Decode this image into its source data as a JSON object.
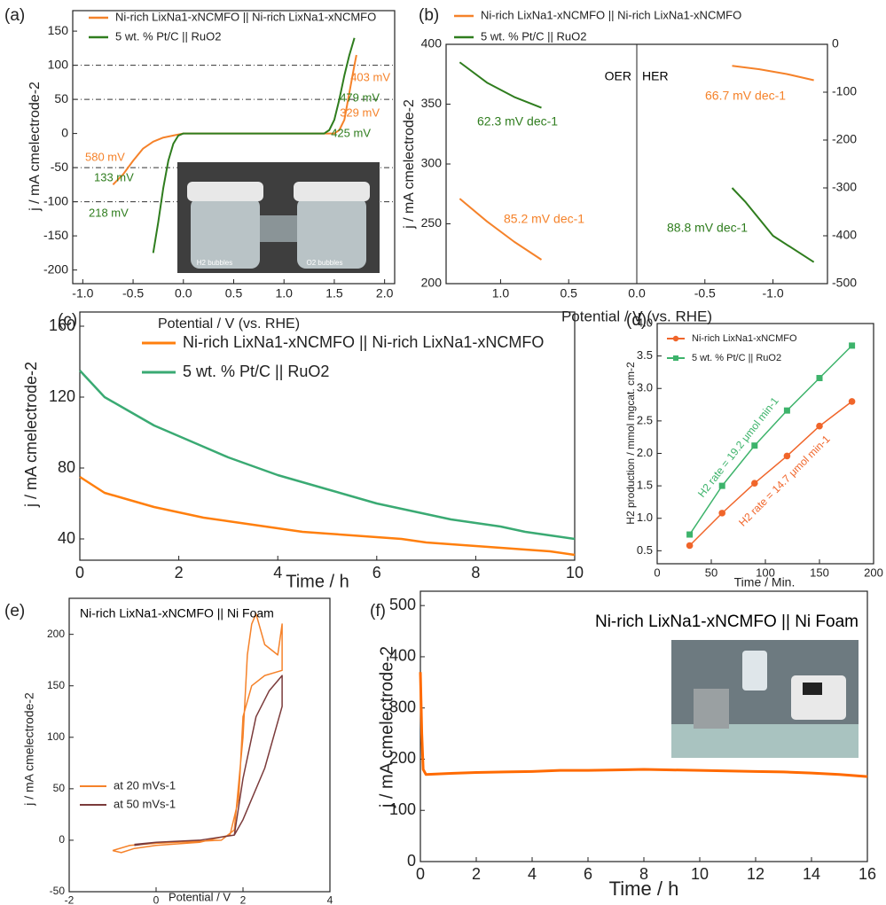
{
  "chart_data": [
    {
      "type": "line",
      "label": "(a)",
      "xlabel": "Potential / V (vs. RHE)",
      "ylabel": "j / mA cmelectrode-2",
      "xlim": [
        -1.1,
        2.1
      ],
      "ylim": [
        -220,
        180
      ],
      "xticks": [
        {
          "value": -1.0,
          "label": "-1.0"
        },
        -0.5,
        {
          "value": 0.0,
          "label": "0.0"
        },
        0.5,
        {
          "value": 1.0,
          "label": "1.0"
        },
        1.5,
        {
          "value": 2.0,
          "label": "2.0"
        }
      ],
      "yticks": [
        -200,
        -150,
        -100,
        -50,
        0,
        50,
        100,
        150
      ],
      "hlines": [
        100,
        50,
        -50,
        -100
      ],
      "series": [
        {
          "name": "Ni-rich LixNa1-xNCMFO || Ni-rich LixNa1-xNCMFO",
          "color": "#f5822a",
          "x": [
            -0.7,
            -0.6,
            -0.5,
            -0.4,
            -0.3,
            -0.2,
            -0.1,
            0,
            0.5,
            1.0,
            1.5,
            1.55,
            1.6,
            1.65,
            1.7,
            1.72
          ],
          "values": [
            -75,
            -60,
            -40,
            -22,
            -12,
            -6,
            -3,
            0,
            0,
            0,
            0,
            5,
            20,
            60,
            100,
            115
          ]
        },
        {
          "name": "5 wt. % Pt/C || RuO2",
          "color": "#2f7d1e",
          "x": [
            -0.3,
            -0.25,
            -0.2,
            -0.15,
            -0.1,
            -0.05,
            0,
            0.5,
            1.0,
            1.4,
            1.45,
            1.5,
            1.55,
            1.6,
            1.65,
            1.7
          ],
          "values": [
            -175,
            -130,
            -80,
            -40,
            -15,
            -3,
            0,
            0,
            0,
            0,
            5,
            20,
            50,
            85,
            115,
            140
          ]
        }
      ],
      "annotations": [
        {
          "text": "403 mV",
          "color": "#f5822a"
        },
        {
          "text": "479 mV",
          "color": "#2f7d1e"
        },
        {
          "text": "329 mV",
          "color": "#f5822a"
        },
        {
          "text": "425 mV",
          "color": "#2f7d1e"
        },
        {
          "text": "580 mV",
          "color": "#f5822a"
        },
        {
          "text": "133 mV",
          "color": "#2f7d1e"
        },
        {
          "text": "218 mV",
          "color": "#2f7d1e"
        },
        {
          "text": "H2 bubbles",
          "color": "#ffffff"
        },
        {
          "text": "O2 bubbles",
          "color": "#ffffff"
        }
      ]
    },
    {
      "type": "line",
      "label": "(b)",
      "xlabel": "Potential / V (vs. RHE)",
      "ylabel": "j / mA cmelectrode-2",
      "xlim": [
        1.4,
        -1.4
      ],
      "ylim": [
        200,
        400
      ],
      "y2lim": [
        -500,
        0
      ],
      "xticks": [
        {
          "value": 1.0,
          "label": "1.0"
        },
        0.5,
        {
          "value": 0.0,
          "label": "0.0"
        },
        -0.5,
        {
          "value": -1.0,
          "label": "-1.0"
        }
      ],
      "yticks": [
        200,
        250,
        300,
        350,
        400
      ],
      "y2ticks": [
        -500,
        -400,
        -300,
        -200,
        -100,
        0
      ],
      "vlines": [
        0
      ],
      "series": [
        {
          "name": "Ni-rich LixNa1-xNCMFO || Ni-rich LixNa1-xNCMFO",
          "color": "#f5822a",
          "segments": [
            {
              "axis": "y",
              "x": [
                1.3,
                1.1,
                0.9,
                0.7
              ],
              "values": [
                271,
                252,
                235,
                220
              ]
            },
            {
              "axis": "y2",
              "x": [
                -0.7,
                -0.9,
                -1.1,
                -1.3
              ],
              "values": [
                -45,
                -52,
                -62,
                -75
              ]
            }
          ]
        },
        {
          "name": "5 wt. % Pt/C || RuO2",
          "color": "#2f7d1e",
          "segments": [
            {
              "axis": "y",
              "x": [
                1.3,
                1.1,
                0.9,
                0.7
              ],
              "values": [
                385,
                368,
                356,
                347
              ]
            },
            {
              "axis": "y2",
              "x": [
                -0.7,
                -0.8,
                -1.0,
                -1.3
              ],
              "values": [
                -300,
                -330,
                -400,
                -455
              ]
            }
          ]
        }
      ],
      "annotations": [
        {
          "text": "OER",
          "color": "#000000"
        },
        {
          "text": "HER",
          "color": "#000000"
        },
        {
          "text": "62.3 mV dec-1",
          "color": "#2f7d1e"
        },
        {
          "text": "85.2 mV dec-1",
          "color": "#f5822a"
        },
        {
          "text": "66.7 mV dec-1",
          "color": "#f5822a"
        },
        {
          "text": "88.8 mV dec-1",
          "color": "#2f7d1e"
        }
      ]
    },
    {
      "type": "line",
      "label": "(c)",
      "xlabel": "Time / h",
      "ylabel": "j / mA cmelectrode-2",
      "xlim": [
        0,
        10
      ],
      "ylim": [
        28,
        168
      ],
      "xticks": [
        0,
        2,
        4,
        6,
        8,
        10
      ],
      "yticks": [
        40,
        80,
        120,
        160
      ],
      "series": [
        {
          "name": "Ni-rich LixNa1-xNCMFO || Ni-rich LixNa1-xNCMFO",
          "color": "#ff7f0e",
          "x": [
            0,
            0.5,
            1,
            1.5,
            2,
            2.5,
            3,
            3.5,
            4,
            4.5,
            5,
            5.5,
            6,
            6.5,
            7,
            7.5,
            8,
            8.5,
            9,
            9.5,
            10
          ],
          "values": [
            75,
            66,
            62,
            58,
            55,
            52,
            50,
            48,
            46,
            44,
            43,
            42,
            41,
            40,
            38,
            37,
            36,
            35,
            34,
            33,
            31
          ]
        },
        {
          "name": "5 wt. % Pt/C || RuO2",
          "color": "#3aaa73",
          "x": [
            0,
            0.5,
            1,
            1.5,
            2,
            2.5,
            3,
            3.5,
            4,
            4.5,
            5,
            5.5,
            6,
            6.5,
            7,
            7.5,
            8,
            8.5,
            9,
            9.5,
            10
          ],
          "values": [
            135,
            120,
            112,
            104,
            98,
            92,
            86,
            81,
            76,
            72,
            68,
            64,
            60,
            57,
            54,
            51,
            49,
            47,
            44,
            42,
            40
          ]
        }
      ]
    },
    {
      "type": "line",
      "label": "(d)",
      "xlabel": "Time / Min.",
      "ylabel": "H2 production / mmol mgcat. cm-2",
      "xlim": [
        0,
        200
      ],
      "ylim": [
        0.3,
        4.0
      ],
      "xticks": [
        0,
        50,
        100,
        150,
        200
      ],
      "yticks": [
        0.5,
        {
          "value": 1.0,
          "label": "1.0"
        },
        1.5,
        {
          "value": 2.0,
          "label": "2.0"
        },
        2.5,
        {
          "value": 3.0,
          "label": "3.0"
        },
        3.5,
        {
          "value": 4.0,
          "label": "4.0"
        }
      ],
      "markers": true,
      "series": [
        {
          "name": "Ni-rich LixNa1-xNCMFO",
          "color": "#f0652a",
          "marker": "circle",
          "x": [
            30,
            60,
            90,
            120,
            150,
            180
          ],
          "values": [
            0.58,
            1.08,
            1.54,
            1.96,
            2.42,
            2.8
          ]
        },
        {
          "name": "5 wt. % Pt/C || RuO2",
          "color": "#3db36b",
          "marker": "square",
          "x": [
            30,
            60,
            90,
            120,
            150,
            180
          ],
          "values": [
            0.75,
            1.5,
            2.12,
            2.66,
            3.16,
            3.66
          ]
        }
      ],
      "annotations": [
        {
          "text": "H2 rate = 19.2 μmol min-1",
          "color": "#3db36b"
        },
        {
          "text": "H2 rate = 14.7 μmol min-1",
          "color": "#f0652a"
        }
      ]
    },
    {
      "type": "line",
      "label": "(e)",
      "xlabel": "Potential / V",
      "ylabel": "j / mA cmelectrode-2",
      "xlim": [
        -2,
        4
      ],
      "ylim": [
        -50,
        235
      ],
      "xticks": [
        -2,
        0,
        2,
        4
      ],
      "yticks": [
        -50,
        0,
        50,
        100,
        150,
        200
      ],
      "series": [
        {
          "name": "at 20 mVs-1",
          "color": "#f5822a",
          "x": [
            -1.0,
            -0.6,
            0,
            1.5,
            1.8,
            2.0,
            2.1,
            2.2,
            2.3,
            2.5,
            2.8,
            2.9,
            2.9,
            2.5,
            2.2,
            2.0,
            1.9,
            1.7,
            1.0,
            0,
            -0.5,
            -0.8,
            -1.0
          ],
          "values": [
            -10,
            -5,
            -3,
            0,
            10,
            100,
            180,
            210,
            220,
            190,
            180,
            210,
            165,
            160,
            150,
            120,
            40,
            5,
            -2,
            -5,
            -8,
            -12,
            -10
          ]
        },
        {
          "name": "at 50 mVs-1",
          "color": "#7b3b3b",
          "x": [
            -0.5,
            0,
            1.0,
            1.8,
            2.0,
            2.3,
            2.6,
            2.9,
            2.9,
            2.5,
            2.2,
            2.0,
            1.8,
            1.0,
            0,
            -0.5
          ],
          "values": [
            -4,
            -2,
            0,
            5,
            60,
            120,
            145,
            160,
            130,
            70,
            40,
            20,
            5,
            0,
            -2,
            -5
          ]
        }
      ],
      "annotations": [
        {
          "text": "Ni-rich LixNa1-xNCMFO || Ni Foam",
          "color": "#000000"
        }
      ]
    },
    {
      "type": "line",
      "label": "(f)",
      "xlabel": "Time / h",
      "ylabel": "j / mA cmelectrode-2",
      "xlim": [
        0,
        16
      ],
      "ylim": [
        0,
        528
      ],
      "xticks": [
        0,
        2,
        4,
        6,
        8,
        10,
        12,
        14,
        16
      ],
      "yticks": [
        0,
        100,
        200,
        300,
        400,
        500
      ],
      "series": [
        {
          "name": "Ni-rich LixNa1-xNCMFO || Ni Foam",
          "color": "#ff6a00",
          "x": [
            0,
            0.05,
            0.1,
            0.2,
            1,
            2,
            3,
            4,
            5,
            6,
            7,
            8,
            9,
            10,
            11,
            12,
            13,
            14,
            15,
            16
          ],
          "values": [
            370,
            250,
            180,
            170,
            172,
            174,
            175,
            176,
            178,
            178,
            179,
            180,
            179,
            178,
            177,
            176,
            175,
            173,
            170,
            166
          ]
        }
      ],
      "annotations": [
        {
          "text": "Ni-rich LixNa1-xNCMFO || Ni Foam",
          "color": "#000000"
        }
      ]
    }
  ]
}
